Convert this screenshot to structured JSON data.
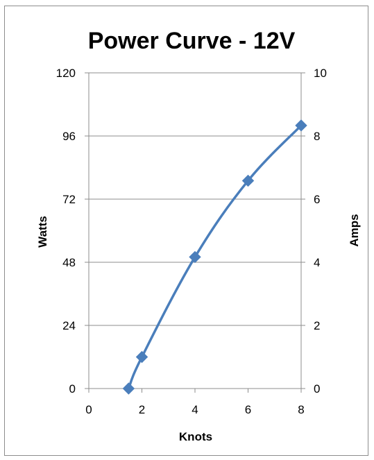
{
  "chart_data": {
    "type": "line",
    "title": "Power Curve - 12V",
    "xlabel": "Knots",
    "ylabel": "Watts",
    "y2label": "Amps",
    "xlim": [
      0,
      8
    ],
    "ylim": [
      0,
      120
    ],
    "y2lim": [
      0,
      10
    ],
    "x_ticks": [
      "0",
      "2",
      "4",
      "6",
      "8"
    ],
    "y_ticks": [
      "0",
      "24",
      "48",
      "72",
      "96",
      "120"
    ],
    "y2_ticks": [
      "0",
      "2",
      "4",
      "6",
      "8",
      "10"
    ],
    "grid": true,
    "legend": "none",
    "series": [
      {
        "x": [
          1.5,
          2,
          4,
          6,
          8
        ],
        "values": [
          0,
          12,
          50,
          79,
          100
        ],
        "color": "#4a7ebb",
        "marker": "diamond",
        "smooth": true
      }
    ]
  }
}
